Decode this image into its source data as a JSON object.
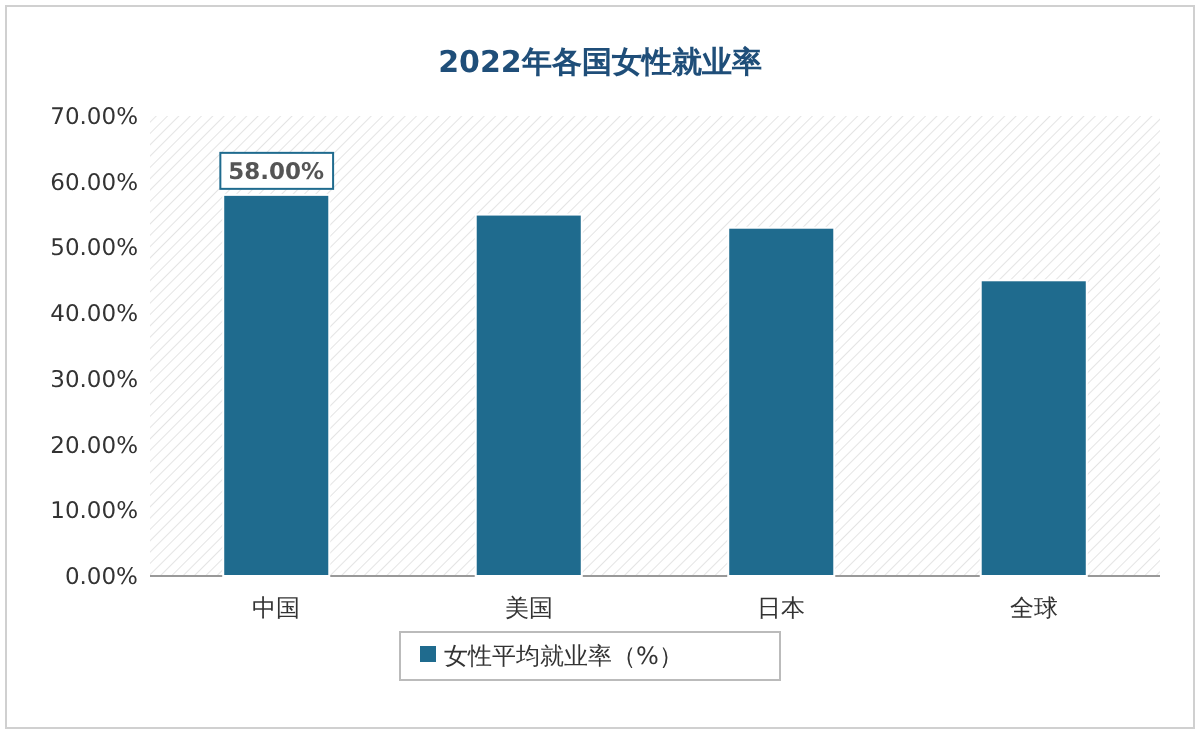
{
  "chart_data": {
    "type": "bar",
    "title": "2022年各国女性就业率",
    "categories": [
      "中国",
      "美国",
      "日本",
      "全球"
    ],
    "series": [
      {
        "name": "女性平均就业率（%）",
        "color": "#1f6b8e",
        "values": [
          58,
          55,
          53,
          45
        ],
        "value_labels": [
          "58.00%",
          null,
          null,
          null
        ]
      }
    ],
    "ylim": [
      0,
      70
    ],
    "yticks": [
      {
        "value": 0,
        "label": "0.00%"
      },
      {
        "value": 10,
        "label": "10.00%"
      },
      {
        "value": 20,
        "label": "20.00%"
      },
      {
        "value": 30,
        "label": "30.00%"
      },
      {
        "value": 40,
        "label": "40.00%"
      },
      {
        "value": 50,
        "label": "50.00%"
      },
      {
        "value": 60,
        "label": "60.00%"
      },
      {
        "value": 70,
        "label": "70.00%"
      }
    ],
    "legend": "bottom"
  }
}
